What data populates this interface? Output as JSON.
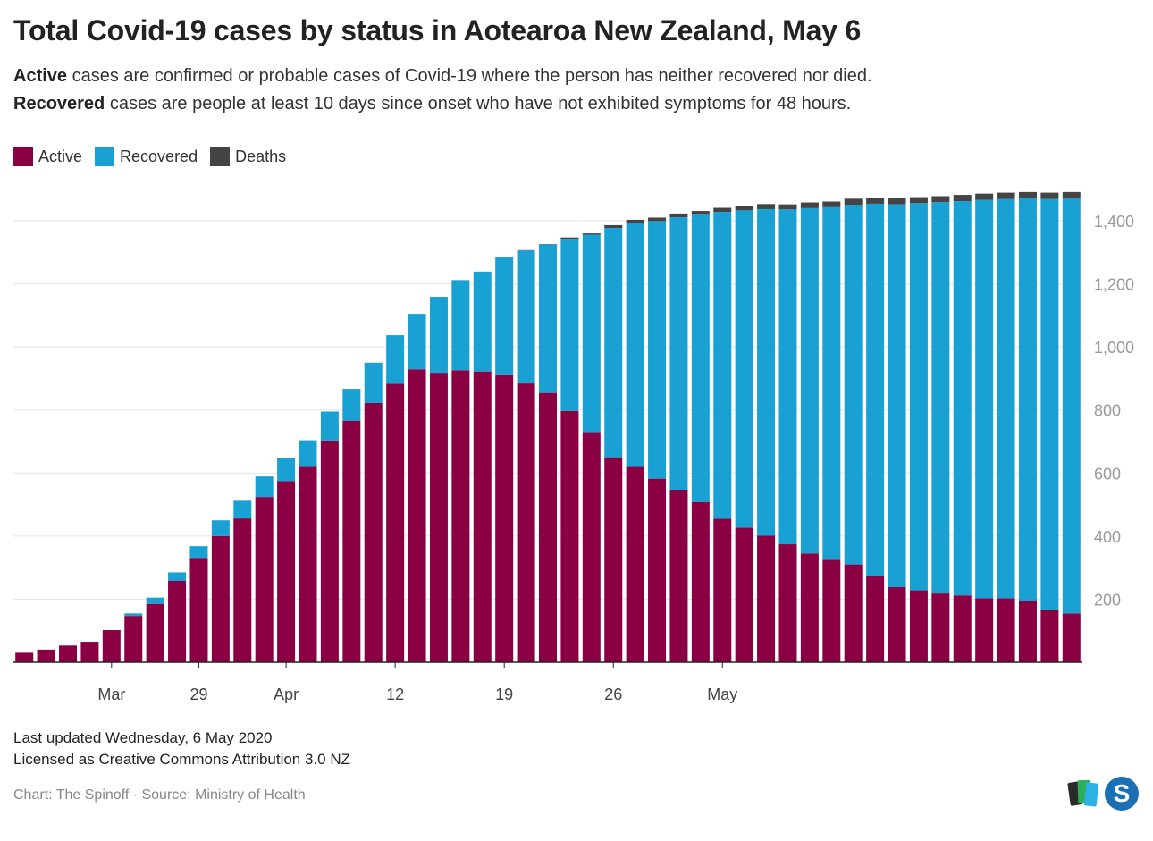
{
  "title": "Total Covid-19 cases by status in Aotearoa New Zealand, May 6",
  "subtitle": {
    "line1_bold": "Active",
    "line1_rest": " cases are confirmed or probable cases of Covid-19 where the person has neither recovered nor died.",
    "line2_bold": "Recovered",
    "line2_rest": " cases are people at least 10 days since onset who have not exhibited symptoms for 48 hours."
  },
  "colors": {
    "active": "#8b0043",
    "recovered": "#1aa1d3",
    "deaths": "#444444",
    "grid": "#e3e3e3",
    "axis": "#222222",
    "tick_label": "#999999"
  },
  "chart_data": {
    "type": "bar",
    "stacked": true,
    "start_date": "2020-03-21",
    "end_date": "2020-05-05",
    "x_tick_labels": [
      {
        "label": "Mar",
        "index": 4
      },
      {
        "label": "29",
        "index": 8
      },
      {
        "label": "Apr",
        "index": 12
      },
      {
        "label": "12",
        "index": 17
      },
      {
        "label": "19",
        "index": 22
      },
      {
        "label": "26",
        "index": 27
      },
      {
        "label": "May",
        "index": 32
      }
    ],
    "y_ticks": [
      200,
      400,
      600,
      800,
      1000,
      1200,
      1400
    ],
    "y_tick_labels": [
      "200",
      "400",
      "600",
      "800",
      "1,000",
      "1,200",
      "1,400"
    ],
    "ylim": [
      0,
      1500
    ],
    "y_axis_side": "right",
    "grid": true,
    "legend_placement": "top-left",
    "series": [
      {
        "name": "Active",
        "color": "#8b0043",
        "values": [
          30,
          40,
          53,
          65,
          102,
          147,
          185,
          258,
          331,
          400,
          456,
          524,
          574,
          622,
          703,
          766,
          822,
          883,
          929,
          918,
          926,
          922,
          910,
          884,
          854,
          797,
          730,
          650,
          622,
          582,
          547,
          508,
          455,
          427,
          401,
          374,
          345,
          325,
          310,
          274,
          238,
          228,
          218,
          212,
          203,
          203,
          195,
          167,
          155
        ]
      },
      {
        "name": "Recovered",
        "color": "#1aa1d3",
        "values": [
          0,
          0,
          0,
          0,
          0,
          8,
          20,
          27,
          37,
          50,
          56,
          65,
          74,
          82,
          92,
          101,
          128,
          154,
          176,
          241,
          286,
          317,
          374,
          422,
          471,
          546,
          626,
          727,
          772,
          817,
          864,
          911,
          973,
          1006,
          1036,
          1062,
          1095,
          1118,
          1141,
          1180,
          1214,
          1228,
          1241,
          1250,
          1263,
          1266,
          1276,
          1302,
          1315
        ]
      },
      {
        "name": "Deaths",
        "color": "#444444",
        "values": [
          0,
          0,
          0,
          0,
          0,
          0,
          0,
          0,
          0,
          0,
          0,
          0,
          0,
          0,
          0,
          0,
          0,
          0,
          0,
          0,
          0,
          0,
          0,
          1,
          1,
          4,
          4,
          9,
          9,
          11,
          12,
          12,
          13,
          14,
          16,
          16,
          18,
          18,
          19,
          19,
          19,
          19,
          19,
          20,
          20,
          20,
          20,
          20,
          21
        ]
      }
    ]
  },
  "footer": {
    "updated": "Last updated Wednesday, 6 May 2020",
    "license": "Licensed as Creative Commons Attribution 3.0 NZ",
    "credit": "Chart: The Spinoff · Source: Ministry of Health",
    "logo_letter": "S"
  }
}
